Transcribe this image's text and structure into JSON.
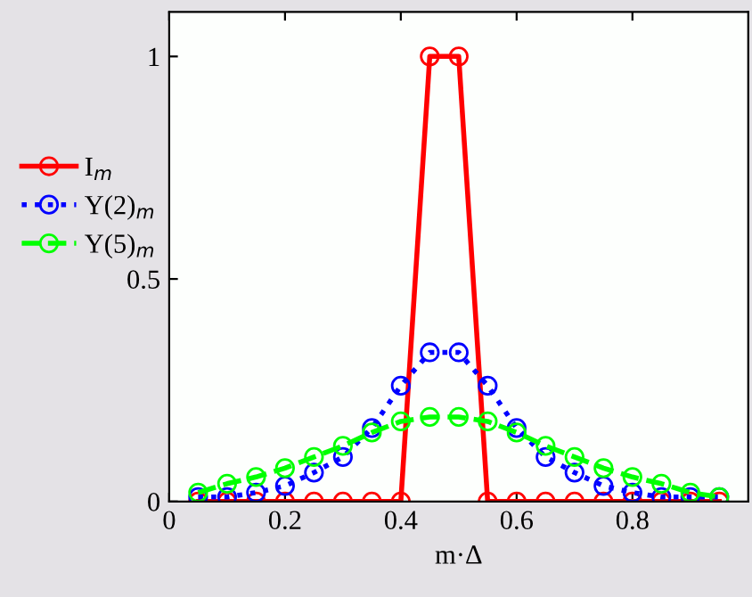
{
  "chart_data": {
    "type": "line",
    "xlabel": "m·Δ",
    "x": [
      0.05,
      0.1,
      0.15,
      0.2,
      0.25,
      0.3,
      0.35,
      0.4,
      0.45,
      0.5,
      0.55,
      0.6,
      0.65,
      0.7,
      0.75,
      0.8,
      0.85,
      0.9,
      0.95
    ],
    "series": [
      {
        "name": "I$_{m}$",
        "color": "#ff0000",
        "line_style": "solid",
        "values": [
          0,
          0,
          0,
          0,
          0,
          0,
          0,
          0,
          1,
          1,
          0,
          0,
          0,
          0,
          0,
          0,
          0,
          0,
          0
        ]
      },
      {
        "name": "Υ(2)$_{m}$",
        "color": "#0000ff",
        "line_style": "dotted",
        "values": [
          0.01,
          0.01,
          0.02,
          0.035,
          0.065,
          0.1,
          0.165,
          0.26,
          0.335,
          0.335,
          0.26,
          0.165,
          0.1,
          0.065,
          0.035,
          0.02,
          0.01,
          0.01,
          0.01
        ]
      },
      {
        "name": "Υ(5)$_{m}$",
        "color": "#00ff00",
        "line_style": "dashed",
        "values": [
          0.02,
          0.04,
          0.055,
          0.075,
          0.1,
          0.125,
          0.155,
          0.18,
          0.19,
          0.19,
          0.18,
          0.155,
          0.125,
          0.1,
          0.075,
          0.055,
          0.04,
          0.02,
          0.01
        ]
      }
    ],
    "xlim": [
      0,
      1
    ],
    "ylim": [
      0,
      1.1
    ],
    "xticks": [
      0,
      0.2,
      0.4,
      0.6,
      0.8
    ],
    "yticks": [
      0,
      0.5,
      1
    ],
    "marker": "circle",
    "grid": false,
    "legend": "left"
  }
}
